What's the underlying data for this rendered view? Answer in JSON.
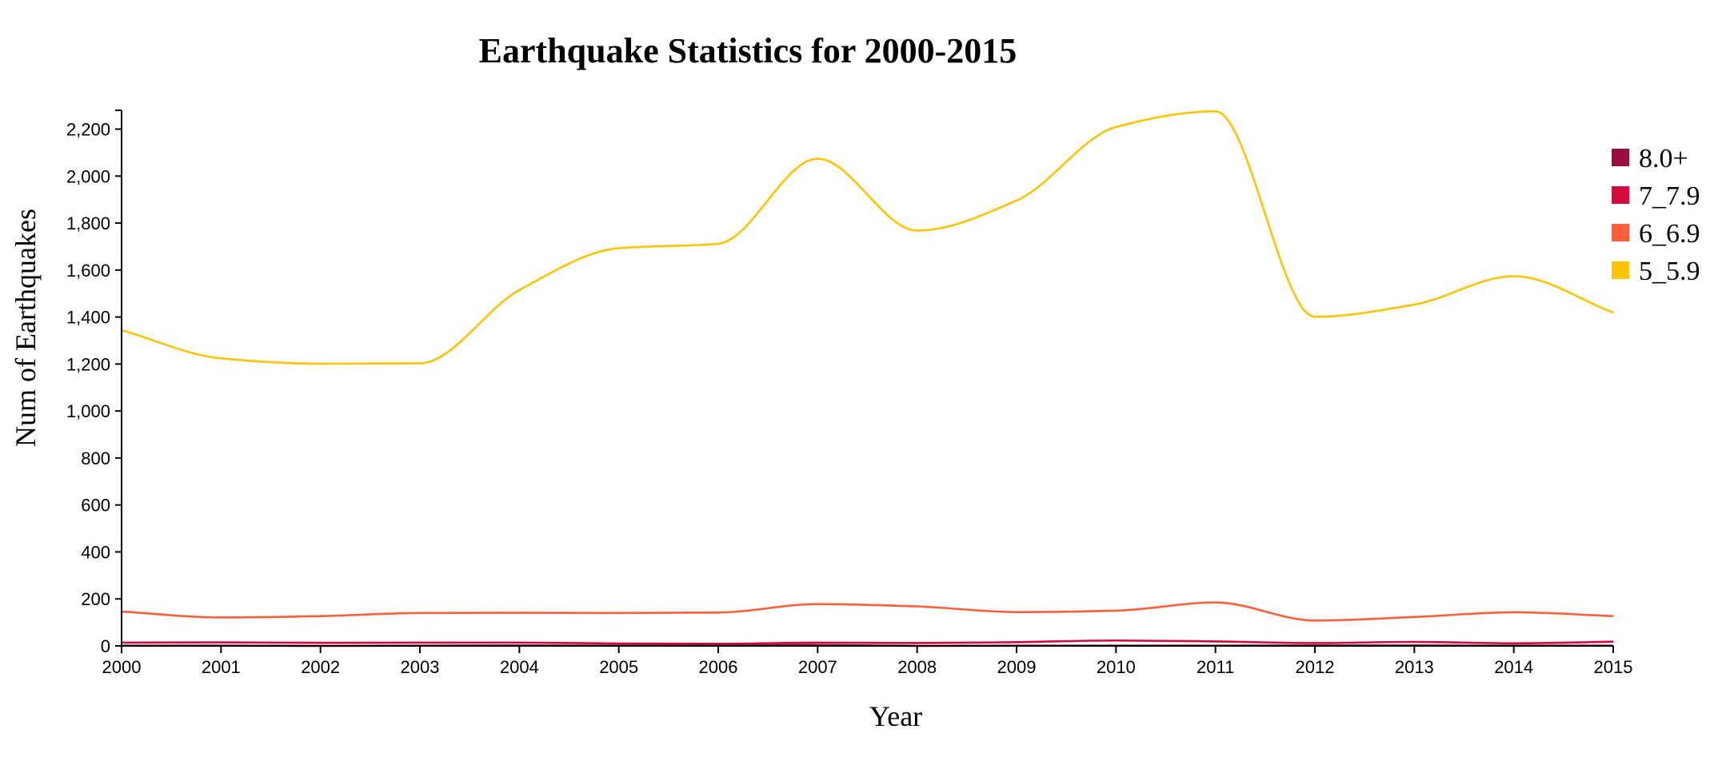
{
  "chart_data": {
    "type": "line",
    "title": "Earthquake Statistics for 2000-2015",
    "xlabel": "Year",
    "ylabel": "Num of Earthquakes",
    "x": [
      2000,
      2001,
      2002,
      2003,
      2004,
      2005,
      2006,
      2007,
      2008,
      2009,
      2010,
      2011,
      2012,
      2013,
      2014,
      2015
    ],
    "x_tick_labels": [
      "2000",
      "2001",
      "2002",
      "2003",
      "2004",
      "2005",
      "2006",
      "2007",
      "2008",
      "2009",
      "2010",
      "2011",
      "2012",
      "2013",
      "2014",
      "2015"
    ],
    "ylim": [
      0,
      2280
    ],
    "y_ticks": [
      0,
      200,
      400,
      600,
      800,
      1000,
      1200,
      1400,
      1600,
      1800,
      2000,
      2200
    ],
    "y_tick_labels": [
      "0",
      "200",
      "400",
      "600",
      "800",
      "1,000",
      "1,200",
      "1,400",
      "1,600",
      "1,800",
      "2,000",
      "2,200"
    ],
    "grid": false,
    "legend_position": "right",
    "series": [
      {
        "name": "8.0+",
        "color": "#990c3f",
        "values": [
          1,
          1,
          0,
          1,
          2,
          1,
          2,
          4,
          0,
          1,
          1,
          1,
          2,
          2,
          1,
          1
        ]
      },
      {
        "name": "7_7.9",
        "color": "#d6093c",
        "values": [
          14,
          15,
          13,
          14,
          14,
          10,
          9,
          14,
          12,
          16,
          23,
          19,
          12,
          17,
          11,
          18
        ]
      },
      {
        "name": "6_6.9",
        "color": "#ff5e3a",
        "values": [
          146,
          121,
          127,
          140,
          141,
          140,
          142,
          178,
          168,
          144,
          150,
          185,
          108,
          123,
          143,
          127
        ]
      },
      {
        "name": "5_5.9",
        "color": "#ffc305",
        "values": [
          1344,
          1224,
          1201,
          1203,
          1515,
          1693,
          1712,
          2074,
          1768,
          1896,
          2209,
          2276,
          1401,
          1453,
          1574,
          1419
        ]
      }
    ]
  }
}
